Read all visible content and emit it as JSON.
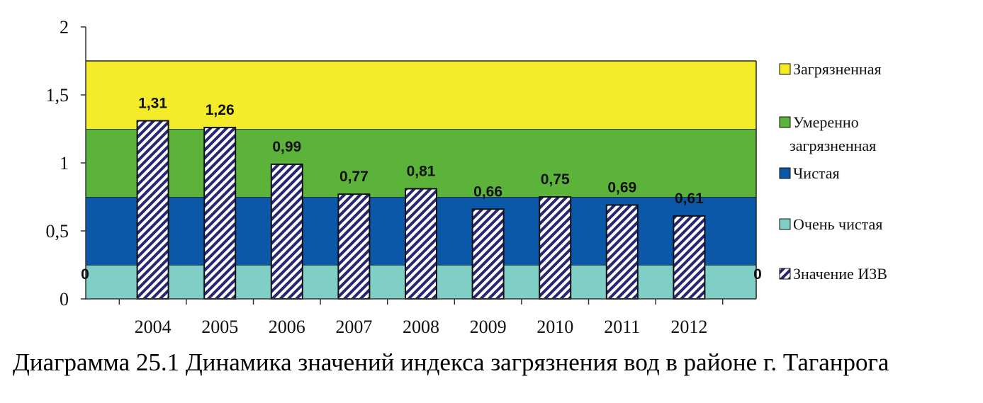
{
  "caption": "Диаграмма 25.1 Динамика значений индекса загрязнения вод в районе г. Таганрога",
  "chart_data": {
    "type": "bar",
    "categories": [
      "2004",
      "2005",
      "2006",
      "2007",
      "2008",
      "2009",
      "2010",
      "2011",
      "2012"
    ],
    "series": [
      {
        "name": "Значение ИЗВ",
        "values": [
          1.31,
          1.26,
          0.99,
          0.77,
          0.81,
          0.66,
          0.75,
          0.69,
          0.61
        ]
      }
    ],
    "data_labels": [
      "1,31",
      "1,26",
      "0,99",
      "0,77",
      "0,81",
      "0,66",
      "0,75",
      "0,69",
      "0,61"
    ],
    "bands": [
      {
        "name": "Очень чистая",
        "from": 0,
        "to": 0.25,
        "color": "#7fcfc6"
      },
      {
        "name": "Чистая",
        "from": 0.25,
        "to": 0.75,
        "color": "#0b58a8"
      },
      {
        "name": "Умеренно загрязненная",
        "from": 0.75,
        "to": 1.25,
        "color": "#5bb33a"
      },
      {
        "name": "Загрязненная",
        "from": 1.25,
        "to": 1.75,
        "color": "#f4ec2a"
      }
    ],
    "ylim": [
      0,
      2
    ],
    "yticks": [
      {
        "value": 0,
        "label": "0"
      },
      {
        "value": 0.5,
        "label": "0,5"
      },
      {
        "value": 1,
        "label": "1"
      },
      {
        "value": 1.5,
        "label": "1,5"
      },
      {
        "value": 2,
        "label": "2"
      }
    ],
    "zero_markers": [
      "0",
      "0"
    ],
    "legend": {
      "position": "right",
      "items": [
        {
          "lines": [
            "Загрязненная"
          ],
          "color": "#f4ec2a"
        },
        {
          "lines": [
            "Умеренно",
            "загрязненная"
          ],
          "color": "#5bb33a"
        },
        {
          "lines": [
            "Чистая"
          ],
          "color": "#0b58a8"
        },
        {
          "lines": [
            "Очень чистая"
          ],
          "color": "#7fcfc6"
        },
        {
          "lines": [
            "Значение ИЗВ"
          ],
          "pattern": "hatch"
        }
      ]
    },
    "bar_pattern": {
      "stroke": "#262673",
      "fill": "#ffffff"
    },
    "grid": false
  }
}
